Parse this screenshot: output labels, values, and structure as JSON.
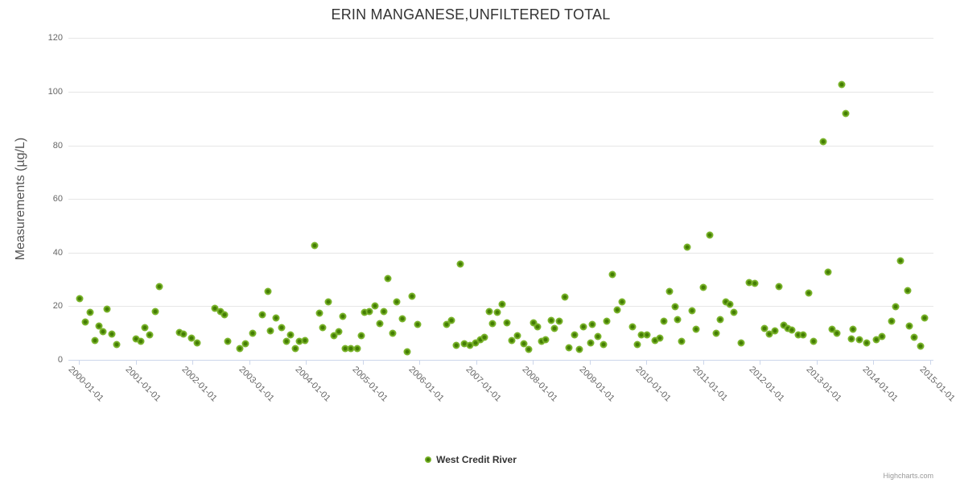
{
  "credits": {
    "text": "Highcharts.com"
  },
  "chart_data": {
    "type": "scatter",
    "title": "ERIN MANGANESE,UNFILTERED TOTAL",
    "xlabel": "",
    "ylabel": "Measurements (µg/L)",
    "ylim": [
      0,
      120
    ],
    "yticks": [
      0,
      20,
      40,
      60,
      80,
      100,
      120
    ],
    "xlim": [
      1999.8,
      2015.1
    ],
    "xtick_labels": [
      "2000-01-01",
      "2001-01-01",
      "2002-01-01",
      "2003-01-01",
      "2004-01-01",
      "2005-01-01",
      "2006-01-01",
      "2007-01-01",
      "2008-01-01",
      "2009-01-01",
      "2010-01-01",
      "2011-01-01",
      "2012-01-01",
      "2013-01-01",
      "2014-01-01",
      "2015-01-01"
    ],
    "grid": "horizontal",
    "legend_position": "bottom-center",
    "marker_color": "#7db430",
    "series": [
      {
        "name": "West Credit River",
        "color": "#7db430",
        "points": [
          [
            2000.02,
            22.7
          ],
          [
            2000.12,
            14.2
          ],
          [
            2000.2,
            17.6
          ],
          [
            2000.28,
            7.3
          ],
          [
            2000.35,
            12.6
          ],
          [
            2000.43,
            10.6
          ],
          [
            2000.5,
            18.9
          ],
          [
            2000.58,
            9.7
          ],
          [
            2000.67,
            5.7
          ],
          [
            2001.01,
            7.9
          ],
          [
            2001.09,
            7.0
          ],
          [
            2001.17,
            12.0
          ],
          [
            2001.25,
            9.3
          ],
          [
            2001.35,
            18.0
          ],
          [
            2001.42,
            27.2
          ],
          [
            2001.77,
            10.2
          ],
          [
            2001.85,
            9.7
          ],
          [
            2001.99,
            8.0
          ],
          [
            2002.08,
            6.4
          ],
          [
            2002.4,
            19.3
          ],
          [
            2002.5,
            18.0
          ],
          [
            2002.57,
            16.8
          ],
          [
            2002.62,
            7.0
          ],
          [
            2002.83,
            4.2
          ],
          [
            2002.93,
            6.0
          ],
          [
            2003.07,
            10.0
          ],
          [
            2003.23,
            16.8
          ],
          [
            2003.33,
            25.4
          ],
          [
            2003.38,
            10.7
          ],
          [
            2003.48,
            15.6
          ],
          [
            2003.57,
            12.1
          ],
          [
            2003.66,
            6.9
          ],
          [
            2003.73,
            9.2
          ],
          [
            2003.81,
            4.2
          ],
          [
            2003.89,
            6.8
          ],
          [
            2003.99,
            7.2
          ],
          [
            2004.15,
            42.6
          ],
          [
            2004.24,
            17.3
          ],
          [
            2004.3,
            12.1
          ],
          [
            2004.4,
            21.7
          ],
          [
            2004.49,
            9.0
          ],
          [
            2004.58,
            10.4
          ],
          [
            2004.65,
            16.3
          ],
          [
            2004.69,
            4.3
          ],
          [
            2004.8,
            4.3
          ],
          [
            2004.91,
            4.3
          ],
          [
            2004.98,
            8.9
          ],
          [
            2005.03,
            17.7
          ],
          [
            2005.12,
            18.0
          ],
          [
            2005.22,
            20.2
          ],
          [
            2005.3,
            13.4
          ],
          [
            2005.38,
            17.9
          ],
          [
            2005.45,
            30.2
          ],
          [
            2005.53,
            9.9
          ],
          [
            2005.6,
            21.7
          ],
          [
            2005.7,
            15.2
          ],
          [
            2005.79,
            2.9
          ],
          [
            2005.87,
            23.8
          ],
          [
            2005.97,
            13.2
          ],
          [
            2006.48,
            13.2
          ],
          [
            2006.57,
            14.7
          ],
          [
            2006.65,
            5.4
          ],
          [
            2006.72,
            35.7
          ],
          [
            2006.79,
            5.9
          ],
          [
            2006.9,
            5.5
          ],
          [
            2006.99,
            6.2
          ],
          [
            2007.08,
            7.4
          ],
          [
            2007.15,
            8.4
          ],
          [
            2007.23,
            18.0
          ],
          [
            2007.29,
            13.4
          ],
          [
            2007.38,
            17.8
          ],
          [
            2007.46,
            20.8
          ],
          [
            2007.55,
            13.7
          ],
          [
            2007.63,
            7.2
          ],
          [
            2007.73,
            9.0
          ],
          [
            2007.84,
            6.0
          ],
          [
            2007.93,
            4.0
          ],
          [
            2008.01,
            13.9
          ],
          [
            2008.09,
            12.4
          ],
          [
            2008.16,
            6.8
          ],
          [
            2008.23,
            7.6
          ],
          [
            2008.33,
            14.8
          ],
          [
            2008.38,
            11.8
          ],
          [
            2008.47,
            14.5
          ],
          [
            2008.57,
            23.4
          ],
          [
            2008.64,
            4.5
          ],
          [
            2008.74,
            9.4
          ],
          [
            2008.82,
            3.8
          ],
          [
            2008.9,
            12.4
          ],
          [
            2009.02,
            6.2
          ],
          [
            2009.05,
            13.2
          ],
          [
            2009.15,
            8.8
          ],
          [
            2009.25,
            5.8
          ],
          [
            2009.31,
            14.4
          ],
          [
            2009.4,
            31.8
          ],
          [
            2009.49,
            18.6
          ],
          [
            2009.58,
            21.5
          ],
          [
            2009.76,
            12.2
          ],
          [
            2009.84,
            5.7
          ],
          [
            2009.92,
            9.4
          ],
          [
            2010.02,
            9.4
          ],
          [
            2010.16,
            7.2
          ],
          [
            2010.24,
            8.0
          ],
          [
            2010.31,
            14.3
          ],
          [
            2010.41,
            25.4
          ],
          [
            2010.51,
            19.7
          ],
          [
            2010.55,
            15.0
          ],
          [
            2010.62,
            7.0
          ],
          [
            2010.73,
            42.0
          ],
          [
            2010.81,
            18.2
          ],
          [
            2010.88,
            11.3
          ],
          [
            2011.0,
            27.1
          ],
          [
            2011.12,
            46.4
          ],
          [
            2011.23,
            9.8
          ],
          [
            2011.31,
            15.0
          ],
          [
            2011.4,
            21.7
          ],
          [
            2011.48,
            20.6
          ],
          [
            2011.55,
            17.8
          ],
          [
            2011.68,
            6.4
          ],
          [
            2011.82,
            28.8
          ],
          [
            2011.91,
            28.5
          ],
          [
            2012.09,
            11.7
          ],
          [
            2012.17,
            9.7
          ],
          [
            2012.27,
            10.9
          ],
          [
            2012.34,
            27.2
          ],
          [
            2012.43,
            13.0
          ],
          [
            2012.5,
            11.7
          ],
          [
            2012.57,
            11.2
          ],
          [
            2012.68,
            9.2
          ],
          [
            2012.76,
            9.2
          ],
          [
            2012.86,
            24.8
          ],
          [
            2012.95,
            7.0
          ],
          [
            2013.12,
            81.4
          ],
          [
            2013.2,
            32.6
          ],
          [
            2013.27,
            11.4
          ],
          [
            2013.36,
            10.0
          ],
          [
            2013.45,
            102.6
          ],
          [
            2013.52,
            91.8
          ],
          [
            2013.62,
            7.8
          ],
          [
            2013.65,
            11.4
          ],
          [
            2013.76,
            7.6
          ],
          [
            2013.88,
            6.2
          ],
          [
            2014.06,
            7.4
          ],
          [
            2014.16,
            8.6
          ],
          [
            2014.33,
            14.4
          ],
          [
            2014.4,
            19.7
          ],
          [
            2014.48,
            36.8
          ],
          [
            2014.61,
            25.8
          ],
          [
            2014.64,
            12.6
          ],
          [
            2014.72,
            8.5
          ],
          [
            2014.83,
            5.0
          ],
          [
            2014.91,
            15.7
          ]
        ]
      }
    ]
  }
}
